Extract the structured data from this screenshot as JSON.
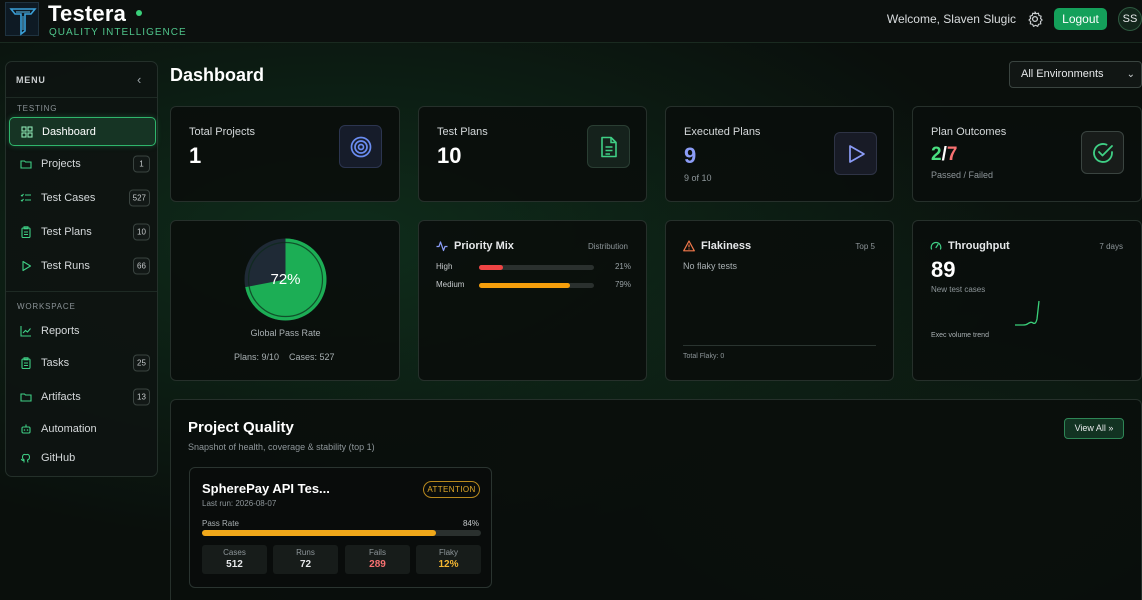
{
  "header": {
    "brand_name": "Testera",
    "brand_tagline": "QUALITY INTELLIGENCE",
    "welcome": "Welcome, Slaven Slugic",
    "logout_label": "Logout",
    "avatar_initials": "SS"
  },
  "sidebar": {
    "menu_label": "MENU",
    "collapse_glyph": "‹",
    "sections": {
      "testing": "TESTING",
      "workspace": "WORKSPACE"
    },
    "items": [
      {
        "label": "Dashboard",
        "icon": "grid-icon",
        "active": true
      },
      {
        "label": "Projects",
        "icon": "folder-icon",
        "badge": "1"
      },
      {
        "label": "Test Cases",
        "icon": "checklist-icon",
        "badge": "527"
      },
      {
        "label": "Test Plans",
        "icon": "clipboard-icon",
        "badge": "10"
      },
      {
        "label": "Test Runs",
        "icon": "play-icon",
        "badge": "66"
      },
      {
        "label": "Reports",
        "icon": "line-chart-icon"
      },
      {
        "label": "Tasks",
        "icon": "clipboard-icon",
        "badge": "25"
      },
      {
        "label": "Artifacts",
        "icon": "folder-icon",
        "badge": "13"
      },
      {
        "label": "Automation",
        "icon": "robot-icon"
      },
      {
        "label": "GitHub",
        "icon": "github-icon"
      }
    ]
  },
  "main": {
    "title": "Dashboard",
    "environment": {
      "selected": "All Environments"
    },
    "stats": {
      "total_projects": {
        "label": "Total Projects",
        "value": "1"
      },
      "test_plans": {
        "label": "Test Plans",
        "value": "10"
      },
      "executed_plans": {
        "label": "Executed Plans",
        "value": "9",
        "sub": "9 of 10"
      },
      "plan_outcomes": {
        "label": "Plan Outcomes",
        "passed": "2",
        "sep": "/",
        "failed": "7",
        "sub": "Passed / Failed"
      }
    },
    "pass_rate": {
      "value_label": "72%",
      "value": 0.72,
      "label": "Global Pass Rate",
      "plans": "Plans: 9/10",
      "cases": "Cases: 527"
    },
    "priority_mix": {
      "title": "Priority Mix",
      "right": "Distribution",
      "rows": [
        {
          "name": "High",
          "value": 0.21,
          "pct": "21%",
          "color": "#ef4444"
        },
        {
          "name": "Medium",
          "value": 0.79,
          "pct": "79%",
          "color": "#f59e0b"
        }
      ]
    },
    "flakiness": {
      "title": "Flakiness",
      "right": "Top 5",
      "empty": "No flaky tests",
      "total": "Total Flaky: 0"
    },
    "throughput": {
      "title": "Throughput",
      "right": "7 days",
      "value": "89",
      "sub": "New test cases",
      "trend_label": "Exec volume trend"
    },
    "project_quality": {
      "title": "Project Quality",
      "subtitle": "Snapshot of health, coverage & stability (top 1)",
      "view_all": "View All »",
      "project": {
        "name": "SpherePay API Tes...",
        "last_run": "Last run: 2026-08-07",
        "badge": "ATTENTION",
        "pass_rate_label": "Pass Rate",
        "pass_rate_pct": "84%",
        "pass_rate": 0.84,
        "stats": [
          {
            "label": "Cases",
            "value": "512",
            "color": "#e6e8ea"
          },
          {
            "label": "Runs",
            "value": "72",
            "color": "#e6e8ea"
          },
          {
            "label": "Fails",
            "value": "289",
            "color": "#f87171"
          },
          {
            "label": "Flaky",
            "value": "12%",
            "color": "#f5b731"
          }
        ]
      }
    }
  },
  "colors": {
    "accent": "#14a05a",
    "passed": "#4ade80",
    "failed": "#f87171",
    "executed": "#8b9cf6",
    "warning": "#f0a81a"
  }
}
